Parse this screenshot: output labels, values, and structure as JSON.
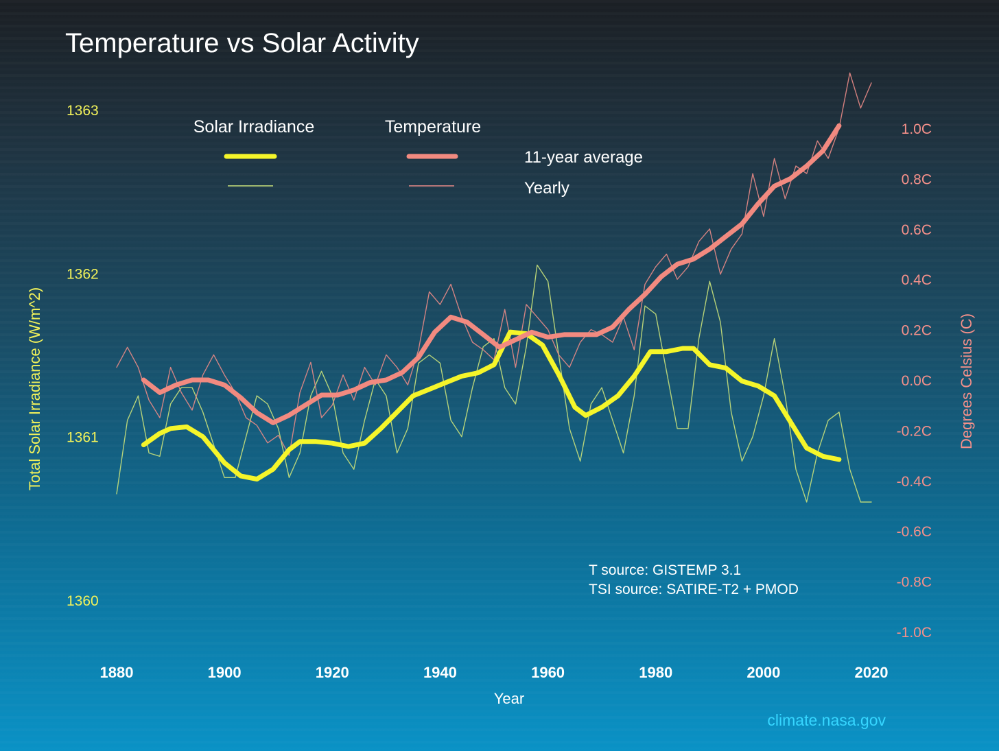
{
  "chart_data": {
    "type": "line",
    "title": "Temperature vs Solar Activity",
    "xlabel": "Year",
    "ylabel_left": "Total Solar Irradiance (W/m^2)",
    "ylabel_right": "Degrees Celsius (C)",
    "xlim": [
      1880,
      2020
    ],
    "ylim_left": [
      1360,
      1363
    ],
    "ylim_right": [
      -1.0,
      1.0
    ],
    "x_ticks": [
      "1880",
      "1900",
      "1920",
      "1940",
      "1960",
      "1980",
      "2000",
      "2020"
    ],
    "y_left_ticks": [
      "1360",
      "1361",
      "1362",
      "1363"
    ],
    "y_right_ticks": [
      "-1.0C",
      "-0.8C",
      "-0.6C",
      "-0.4C",
      "-0.2C",
      "0.0C",
      "0.2C",
      "0.4C",
      "0.6C",
      "0.8C",
      "1.0C"
    ],
    "legend": {
      "solar_header": "Solar Irradiance",
      "temp_header": "Temperature",
      "avg_label": "11-year average",
      "yearly_label": "Yearly"
    },
    "source_lines": [
      "T source: GISTEMP 3.1",
      "TSI source: SATIRE-T2 + PMOD"
    ],
    "credit": "climate.nasa.gov",
    "colors": {
      "solar": "#f5f52a",
      "solar_yearly": "#c8e07a",
      "temp": "#f28a80",
      "temp_yearly": "#e88a86"
    },
    "series": [
      {
        "name": "Solar Irradiance 11-year average",
        "axis": "left",
        "role": "solar_avg",
        "x": [
          1885,
          1888,
          1890,
          1893,
          1896,
          1900,
          1903,
          1906,
          1909,
          1912,
          1914,
          1917,
          1920,
          1923,
          1926,
          1929,
          1932,
          1935,
          1938,
          1941,
          1944,
          1947,
          1950,
          1953,
          1956,
          1959,
          1962,
          1965,
          1967,
          1970,
          1973,
          1976,
          1979,
          1982,
          1985,
          1987,
          1990,
          1993,
          1996,
          1999,
          2002,
          2005,
          2008,
          2011,
          2014
        ],
        "y": [
          1360.95,
          1361.02,
          1361.05,
          1361.06,
          1361.0,
          1360.84,
          1360.76,
          1360.74,
          1360.8,
          1360.92,
          1360.97,
          1360.97,
          1360.96,
          1360.94,
          1360.96,
          1361.05,
          1361.15,
          1361.25,
          1361.29,
          1361.33,
          1361.37,
          1361.39,
          1361.44,
          1361.64,
          1361.63,
          1361.56,
          1361.38,
          1361.18,
          1361.13,
          1361.18,
          1361.25,
          1361.37,
          1361.52,
          1361.52,
          1361.54,
          1361.54,
          1361.44,
          1361.42,
          1361.34,
          1361.31,
          1361.25,
          1361.09,
          1360.93,
          1360.88,
          1360.86
        ]
      },
      {
        "name": "Solar Irradiance yearly",
        "axis": "left",
        "role": "solar_yearly",
        "x": [
          1880,
          1882,
          1884,
          1886,
          1888,
          1890,
          1892,
          1894,
          1896,
          1898,
          1900,
          1902,
          1904,
          1906,
          1908,
          1910,
          1912,
          1914,
          1916,
          1918,
          1920,
          1922,
          1924,
          1926,
          1928,
          1930,
          1932,
          1934,
          1936,
          1938,
          1940,
          1942,
          1944,
          1946,
          1948,
          1950,
          1952,
          1954,
          1956,
          1958,
          1960,
          1962,
          1964,
          1966,
          1968,
          1970,
          1972,
          1974,
          1976,
          1978,
          1980,
          1982,
          1984,
          1986,
          1988,
          1990,
          1992,
          1994,
          1996,
          1998,
          2000,
          2002,
          2004,
          2006,
          2008,
          2010,
          2012,
          2014,
          2016,
          2018,
          2020
        ],
        "y": [
          1360.65,
          1361.1,
          1361.25,
          1360.9,
          1360.88,
          1361.2,
          1361.3,
          1361.3,
          1361.15,
          1360.95,
          1360.75,
          1360.75,
          1361.0,
          1361.25,
          1361.2,
          1361.05,
          1360.75,
          1360.9,
          1361.25,
          1361.4,
          1361.25,
          1360.9,
          1360.8,
          1361.1,
          1361.35,
          1361.25,
          1360.9,
          1361.05,
          1361.45,
          1361.5,
          1361.45,
          1361.1,
          1361.0,
          1361.3,
          1361.55,
          1361.6,
          1361.3,
          1361.2,
          1361.55,
          1362.05,
          1361.95,
          1361.5,
          1361.05,
          1360.85,
          1361.2,
          1361.3,
          1361.1,
          1360.9,
          1361.25,
          1361.8,
          1361.75,
          1361.4,
          1361.05,
          1361.05,
          1361.6,
          1361.95,
          1361.7,
          1361.15,
          1360.85,
          1361.0,
          1361.25,
          1361.6,
          1361.25,
          1360.8,
          1360.6,
          1360.9,
          1361.1,
          1361.15,
          1360.8,
          1360.6,
          1360.6
        ]
      },
      {
        "name": "Temperature 11-year average",
        "axis": "right",
        "role": "temp_avg",
        "x": [
          1885,
          1888,
          1891,
          1894,
          1897,
          1900,
          1903,
          1906,
          1909,
          1912,
          1915,
          1918,
          1921,
          1924,
          1927,
          1930,
          1933,
          1936,
          1939,
          1942,
          1945,
          1948,
          1951,
          1954,
          1957,
          1960,
          1963,
          1966,
          1969,
          1972,
          1975,
          1978,
          1981,
          1984,
          1987,
          1990,
          1993,
          1996,
          1999,
          2002,
          2005,
          2008,
          2011,
          2014
        ],
        "y": [
          0.0,
          -0.05,
          -0.02,
          0.0,
          0.0,
          -0.02,
          -0.07,
          -0.13,
          -0.17,
          -0.14,
          -0.1,
          -0.06,
          -0.06,
          -0.04,
          -0.01,
          0.0,
          0.03,
          0.09,
          0.19,
          0.25,
          0.23,
          0.18,
          0.13,
          0.16,
          0.19,
          0.17,
          0.18,
          0.18,
          0.18,
          0.21,
          0.28,
          0.34,
          0.41,
          0.46,
          0.48,
          0.52,
          0.57,
          0.62,
          0.7,
          0.77,
          0.8,
          0.85,
          0.91,
          1.01
        ]
      },
      {
        "name": "Temperature yearly",
        "axis": "right",
        "role": "temp_yearly",
        "x": [
          1880,
          1882,
          1884,
          1886,
          1888,
          1890,
          1892,
          1894,
          1896,
          1898,
          1900,
          1902,
          1904,
          1906,
          1908,
          1910,
          1912,
          1914,
          1916,
          1918,
          1920,
          1922,
          1924,
          1926,
          1928,
          1930,
          1932,
          1934,
          1936,
          1938,
          1940,
          1942,
          1944,
          1946,
          1948,
          1950,
          1952,
          1954,
          1956,
          1958,
          1960,
          1962,
          1964,
          1966,
          1968,
          1970,
          1972,
          1974,
          1976,
          1978,
          1980,
          1982,
          1984,
          1986,
          1988,
          1990,
          1992,
          1994,
          1996,
          1998,
          2000,
          2002,
          2004,
          2006,
          2008,
          2010,
          2012,
          2014,
          2016,
          2018,
          2020
        ],
        "y": [
          0.05,
          0.13,
          0.05,
          -0.08,
          -0.15,
          0.05,
          -0.05,
          -0.12,
          0.02,
          0.1,
          0.02,
          -0.05,
          -0.15,
          -0.18,
          -0.25,
          -0.22,
          -0.3,
          -0.05,
          0.07,
          -0.15,
          -0.1,
          0.02,
          -0.08,
          0.05,
          -0.02,
          0.1,
          0.05,
          -0.02,
          0.12,
          0.35,
          0.3,
          0.38,
          0.25,
          0.15,
          0.12,
          0.08,
          0.28,
          0.05,
          0.3,
          0.25,
          0.2,
          0.1,
          0.05,
          0.15,
          0.2,
          0.18,
          0.15,
          0.25,
          0.12,
          0.38,
          0.45,
          0.5,
          0.4,
          0.45,
          0.55,
          0.6,
          0.42,
          0.52,
          0.58,
          0.82,
          0.65,
          0.88,
          0.72,
          0.85,
          0.82,
          0.95,
          0.88,
          1.0,
          1.22,
          1.08,
          1.18
        ]
      }
    ]
  }
}
